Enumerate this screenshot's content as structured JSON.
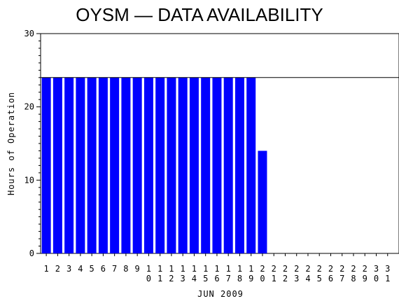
{
  "chart_data": {
    "type": "bar",
    "title": "OYSM — DATA AVAILABILITY",
    "xlabel": "JUN 2009",
    "ylabel": "Hours of Operation",
    "ylim": [
      0,
      30
    ],
    "yticks": [
      "0",
      "10",
      "20",
      "30"
    ],
    "reference_line": 24,
    "categories": [
      "1",
      "2",
      "3",
      "4",
      "5",
      "6",
      "7",
      "8",
      "9",
      "10",
      "11",
      "12",
      "13",
      "14",
      "15",
      "16",
      "17",
      "18",
      "19",
      "20",
      "21",
      "22",
      "23",
      "24",
      "25",
      "26",
      "27",
      "28",
      "29",
      "30",
      "31"
    ],
    "values": [
      24,
      24,
      24,
      24,
      24,
      24,
      24,
      24,
      24,
      24,
      24,
      24,
      24,
      24,
      24,
      24,
      24,
      24,
      24,
      14,
      0,
      0,
      0,
      0,
      0,
      0,
      0,
      0,
      0,
      0,
      0
    ],
    "bar_color": "#0000ff",
    "grid": false,
    "legend": "none"
  }
}
